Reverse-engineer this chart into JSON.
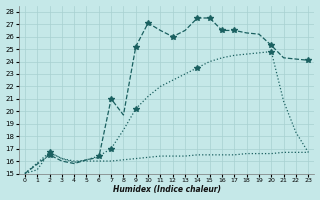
{
  "xlabel": "Humidex (Indice chaleur)",
  "bg_color": "#c5e8e8",
  "grid_color": "#a8d0d0",
  "line_color": "#1a6060",
  "xlim": [
    -0.5,
    23.5
  ],
  "ylim": [
    15,
    28.5
  ],
  "xticks": [
    0,
    1,
    2,
    3,
    4,
    5,
    6,
    7,
    8,
    9,
    10,
    11,
    12,
    13,
    14,
    15,
    16,
    17,
    18,
    19,
    20,
    21,
    22,
    23
  ],
  "yticks": [
    15,
    16,
    17,
    18,
    19,
    20,
    21,
    22,
    23,
    24,
    25,
    26,
    27,
    28
  ],
  "series_flat_x": [
    0,
    1,
    2,
    3,
    4,
    5,
    6,
    7,
    8,
    9,
    10,
    11,
    12,
    13,
    14,
    15,
    16,
    17,
    18,
    19,
    20,
    21,
    22,
    23
  ],
  "series_flat_y": [
    15,
    15.3,
    16.7,
    16.2,
    16.0,
    16.0,
    16.0,
    16.0,
    16.1,
    16.2,
    16.3,
    16.4,
    16.4,
    16.4,
    16.5,
    16.5,
    16.5,
    16.5,
    16.6,
    16.6,
    16.6,
    16.7,
    16.7,
    16.7
  ],
  "series_mid_x": [
    0,
    2,
    3,
    4,
    5,
    6,
    7,
    8,
    9,
    10,
    11,
    12,
    13,
    14,
    15,
    16,
    17,
    18,
    19,
    20,
    21,
    22,
    23
  ],
  "series_mid_y": [
    15,
    16.7,
    16.2,
    15.9,
    16.1,
    16.4,
    17.0,
    18.5,
    20.2,
    21.2,
    22.0,
    22.5,
    23.0,
    23.5,
    24.0,
    24.3,
    24.5,
    24.6,
    24.7,
    24.8,
    20.8,
    18.3,
    16.7
  ],
  "series_mid_mk_x": [
    2,
    6,
    7,
    9,
    14,
    20
  ],
  "series_mid_mk_y": [
    16.7,
    16.4,
    17.0,
    20.2,
    23.5,
    24.8
  ],
  "series_top_x": [
    0,
    2,
    3,
    4,
    5,
    6,
    7,
    8,
    9,
    10,
    11,
    12,
    13,
    14,
    15,
    16,
    17,
    18,
    19,
    20,
    21,
    22,
    23
  ],
  "series_top_y": [
    15,
    16.5,
    16.0,
    15.8,
    16.1,
    16.3,
    21.0,
    19.7,
    25.2,
    27.1,
    26.5,
    26.0,
    26.5,
    27.5,
    27.5,
    26.5,
    26.5,
    26.3,
    26.2,
    25.3,
    24.3,
    24.2,
    24.1
  ],
  "series_top_mk_x": [
    2,
    7,
    9,
    10,
    12,
    14,
    15,
    16,
    17,
    20,
    23
  ],
  "series_top_mk_y": [
    16.5,
    21.0,
    25.2,
    27.1,
    26.0,
    27.5,
    27.5,
    26.5,
    26.5,
    25.3,
    24.1
  ]
}
